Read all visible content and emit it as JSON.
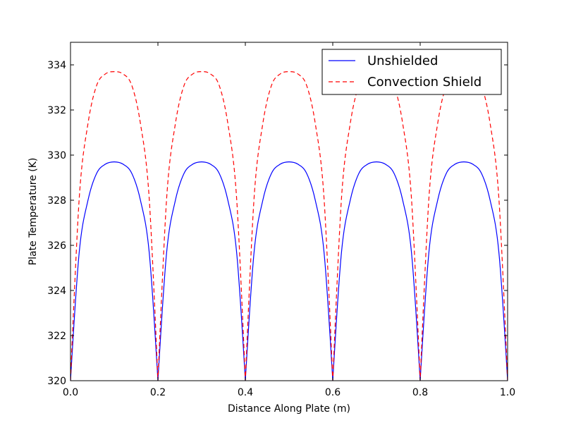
{
  "chart_data": {
    "type": "line",
    "title": "",
    "xlabel": "Distance Along Plate (m)",
    "ylabel": "Plate Temperature (K)",
    "xlim": [
      0.0,
      1.0
    ],
    "ylim": [
      320,
      335
    ],
    "x_ticks": [
      0.0,
      0.2,
      0.4,
      0.6,
      0.8,
      1.0
    ],
    "x_tick_labels": [
      "0.0",
      "0.2",
      "0.4",
      "0.6",
      "0.8",
      "1.0"
    ],
    "y_ticks": [
      320,
      322,
      324,
      326,
      328,
      330,
      332,
      334
    ],
    "y_tick_labels": [
      "320",
      "322",
      "324",
      "326",
      "328",
      "330",
      "332",
      "334"
    ],
    "legend_position": "top-right",
    "grid": false,
    "series": [
      {
        "name": "Unshielded",
        "color": "#0000ff",
        "dash": "solid",
        "x": [
          0.0,
          0.02,
          0.04,
          0.06,
          0.08,
          0.1,
          0.12,
          0.14,
          0.16,
          0.18,
          0.2,
          0.22,
          0.24,
          0.26,
          0.28,
          0.3,
          0.32,
          0.34,
          0.36,
          0.38,
          0.4,
          0.42,
          0.44,
          0.46,
          0.48,
          0.5,
          0.52,
          0.54,
          0.56,
          0.58,
          0.6,
          0.62,
          0.64,
          0.66,
          0.68,
          0.7,
          0.72,
          0.74,
          0.76,
          0.78,
          0.8,
          0.82,
          0.84,
          0.86,
          0.88,
          0.9,
          0.92,
          0.94,
          0.96,
          0.98,
          1.0
        ],
        "y": [
          320.0,
          325.7,
          328.0,
          329.2,
          329.6,
          329.7,
          329.6,
          329.2,
          328.0,
          325.7,
          320.0,
          325.7,
          328.0,
          329.2,
          329.6,
          329.7,
          329.6,
          329.2,
          328.0,
          325.7,
          320.0,
          325.7,
          328.0,
          329.2,
          329.6,
          329.7,
          329.6,
          329.2,
          328.0,
          325.7,
          320.0,
          325.7,
          328.0,
          329.2,
          329.6,
          329.7,
          329.6,
          329.2,
          328.0,
          325.7,
          320.0,
          325.7,
          328.0,
          329.2,
          329.6,
          329.7,
          329.6,
          329.2,
          328.0,
          325.7,
          320.0
        ]
      },
      {
        "name": "Convection Shield",
        "color": "#ff0000",
        "dash": "dashed",
        "x": [
          0.0,
          0.02,
          0.04,
          0.06,
          0.08,
          0.1,
          0.12,
          0.14,
          0.16,
          0.18,
          0.2,
          0.22,
          0.24,
          0.26,
          0.28,
          0.3,
          0.32,
          0.34,
          0.36,
          0.38,
          0.4,
          0.42,
          0.44,
          0.46,
          0.48,
          0.5,
          0.52,
          0.54,
          0.56,
          0.58,
          0.6,
          0.62,
          0.64,
          0.66,
          0.68,
          0.7,
          0.72,
          0.74,
          0.76,
          0.78,
          0.8,
          0.82,
          0.84,
          0.86,
          0.88,
          0.9,
          0.92,
          0.94,
          0.96,
          0.98,
          1.0
        ],
        "y": [
          320.0,
          328.1,
          331.4,
          333.1,
          333.6,
          333.7,
          333.6,
          333.1,
          331.4,
          328.1,
          320.0,
          328.1,
          331.4,
          333.1,
          333.6,
          333.7,
          333.6,
          333.1,
          331.4,
          328.1,
          320.0,
          328.1,
          331.4,
          333.1,
          333.6,
          333.7,
          333.6,
          333.1,
          331.4,
          328.1,
          320.0,
          328.1,
          331.4,
          333.1,
          333.6,
          333.7,
          333.6,
          333.1,
          331.4,
          328.1,
          320.0,
          328.1,
          331.4,
          333.1,
          333.6,
          333.7,
          333.6,
          333.1,
          331.4,
          328.1,
          320.0
        ]
      }
    ]
  }
}
